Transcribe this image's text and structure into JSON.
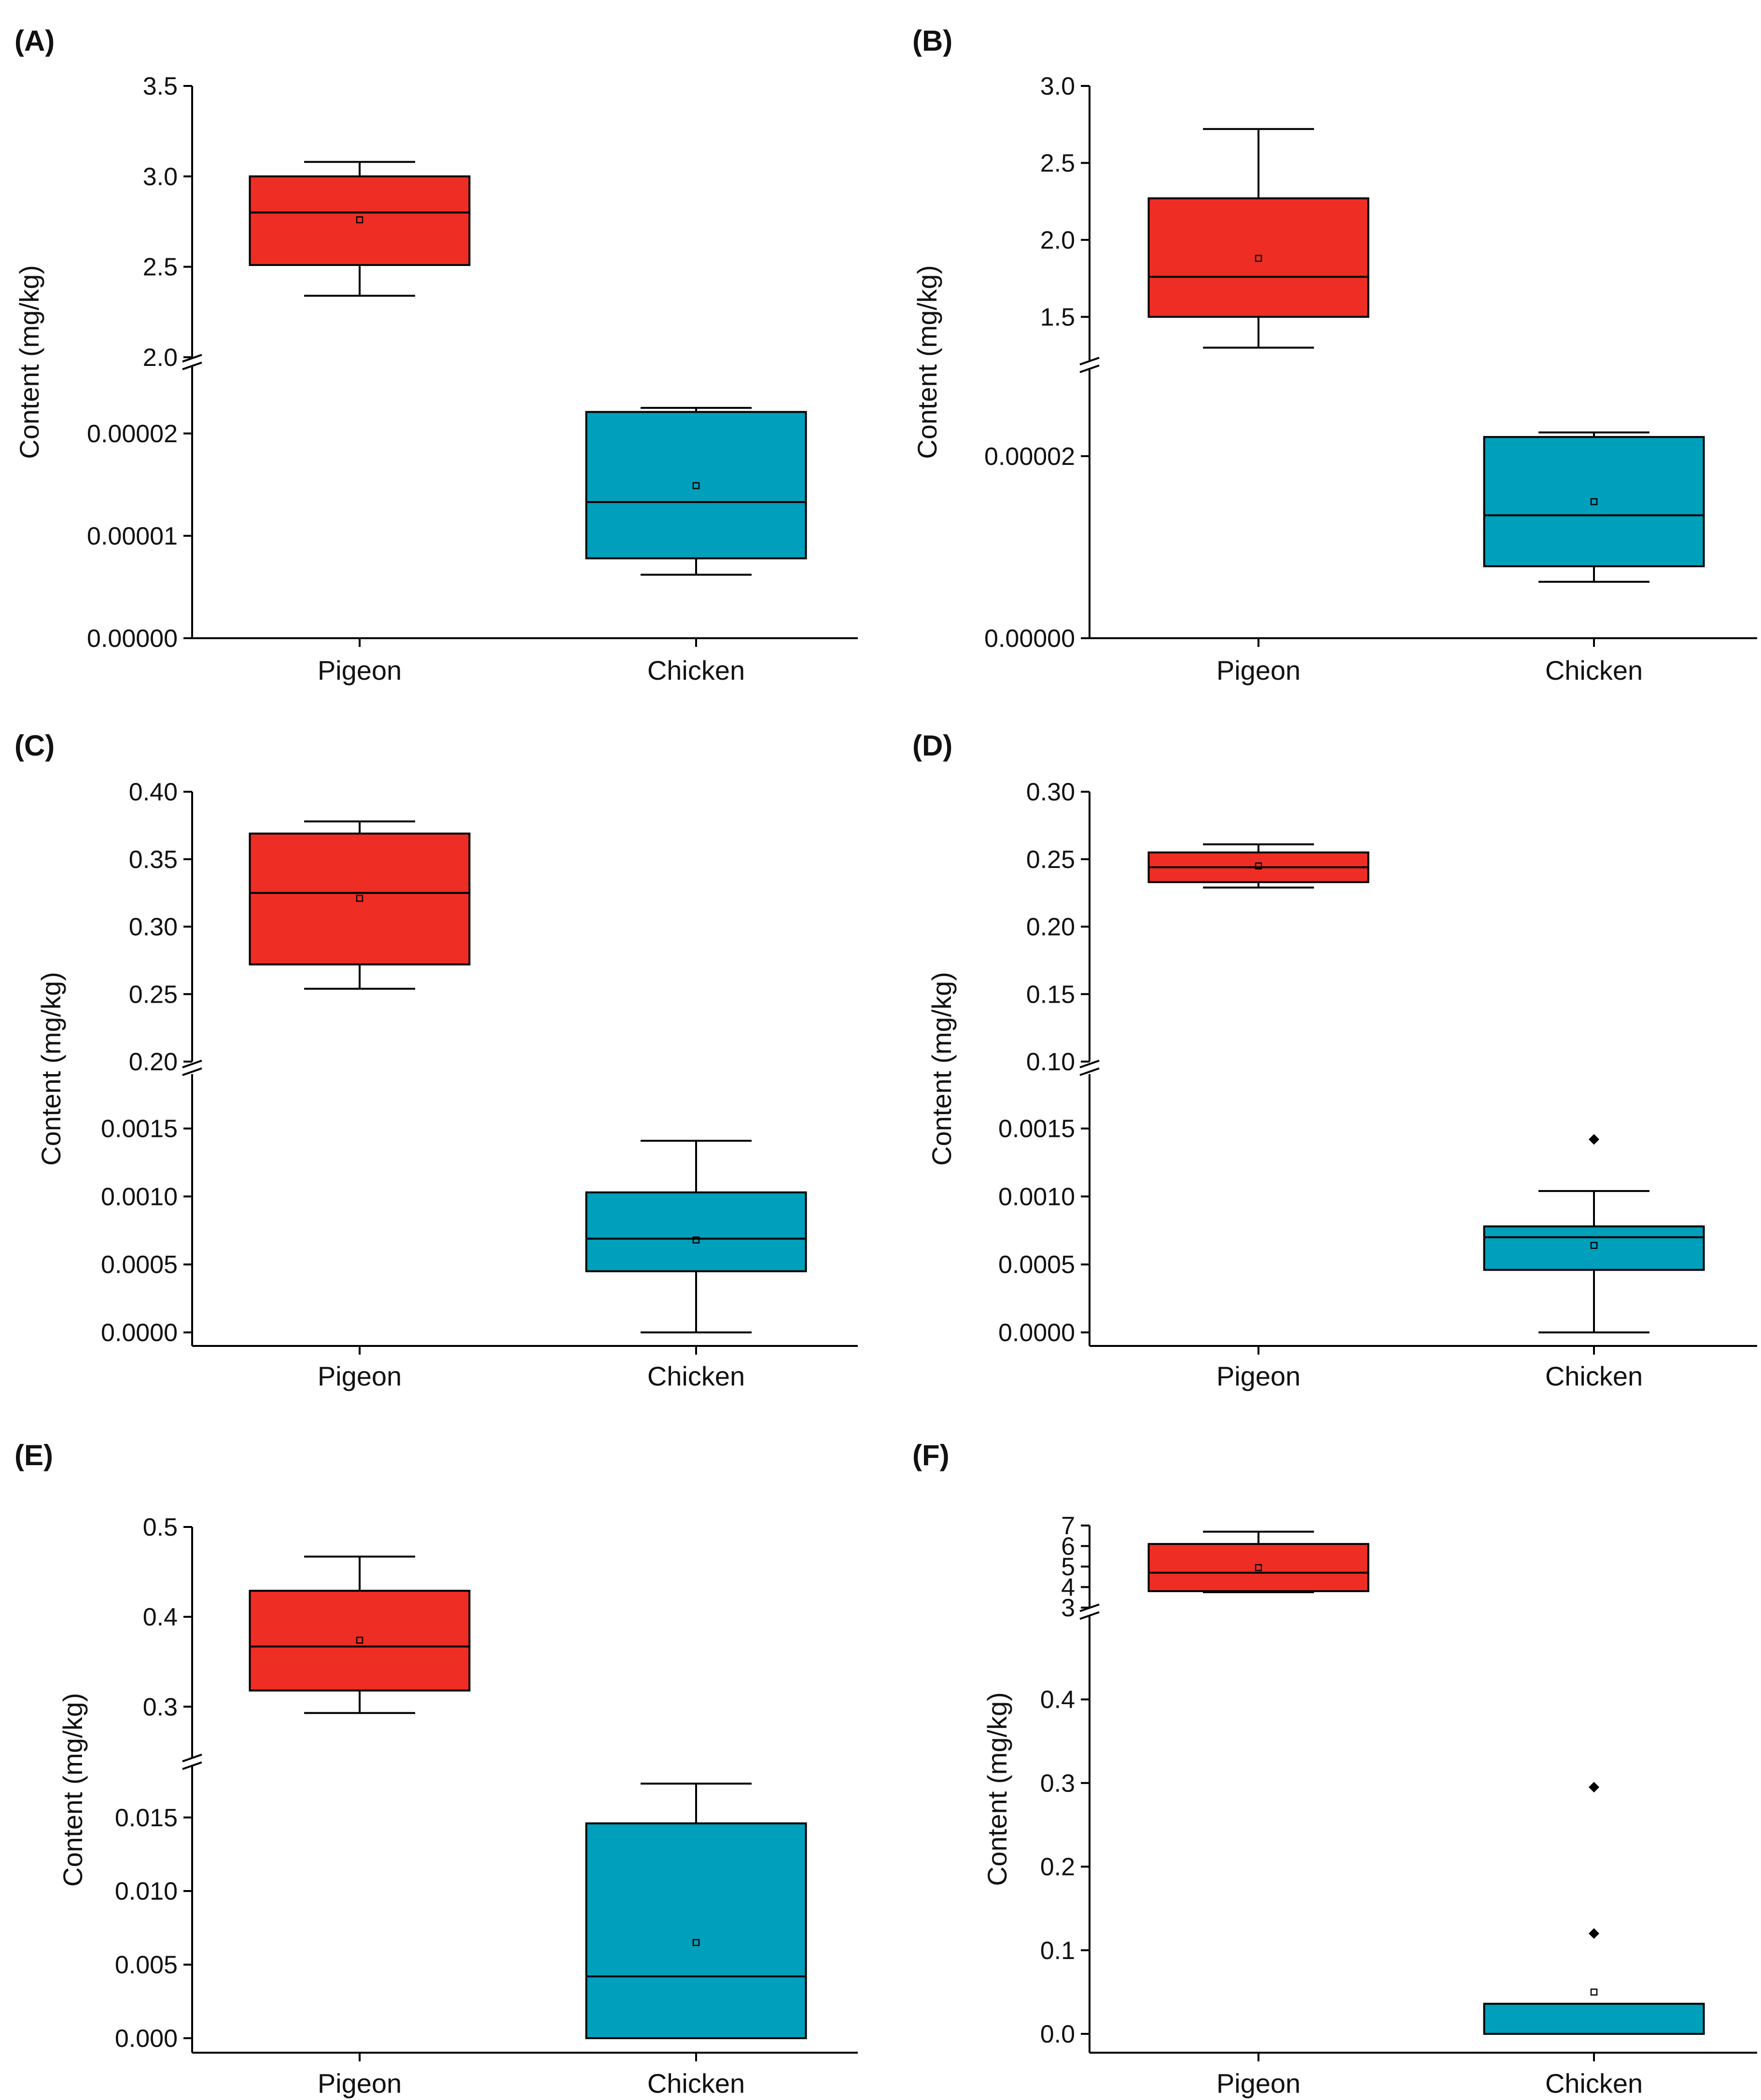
{
  "colors": {
    "pigeon": "#EE2E24",
    "chicken": "#009FBB"
  },
  "chart_data": [
    {
      "panel": "(A)",
      "type": "box",
      "ylabel": "Content (mg/kg)",
      "categories": [
        "Pigeon",
        "Chicken"
      ],
      "upper_range": [
        2.0,
        3.5
      ],
      "upper_ticks": [
        "2.0",
        "2.5",
        "3.0",
        "3.5"
      ],
      "lower_range": [
        0,
        2.65e-05
      ],
      "lower_ticks": [
        "0.00000",
        "0.00001",
        "0.00002"
      ],
      "boxes": [
        {
          "category": "Pigeon",
          "segment": "upper",
          "min": 2.34,
          "q1": 2.51,
          "median": 2.8,
          "q3": 3.0,
          "max": 3.08,
          "mean": 2.76,
          "outliers": []
        },
        {
          "category": "Chicken",
          "segment": "lower",
          "min": 6.2e-06,
          "q1": 7.8e-06,
          "median": 1.33e-05,
          "q3": 2.21e-05,
          "max": 2.25e-05,
          "mean": 1.49e-05,
          "outliers": []
        }
      ]
    },
    {
      "panel": "(B)",
      "type": "box",
      "ylabel": "Content (mg/kg)",
      "categories": [
        "Pigeon",
        "Chicken"
      ],
      "upper_range": [
        1.2,
        3.0
      ],
      "upper_ticks": [
        "1.5",
        "2.0",
        "2.5",
        "3.0"
      ],
      "lower_range": [
        0,
        2.98e-05
      ],
      "lower_ticks": [
        "0.00000",
        "0.00002"
      ],
      "boxes": [
        {
          "category": "Pigeon",
          "segment": "upper",
          "min": 1.3,
          "q1": 1.5,
          "median": 1.76,
          "q3": 2.27,
          "max": 2.72,
          "mean": 1.88,
          "outliers": []
        },
        {
          "category": "Chicken",
          "segment": "lower",
          "min": 6.2e-06,
          "q1": 7.9e-06,
          "median": 1.35e-05,
          "q3": 2.21e-05,
          "max": 2.26e-05,
          "mean": 1.5e-05,
          "outliers": []
        }
      ]
    },
    {
      "panel": "(C)",
      "type": "box",
      "ylabel": "Content (mg/kg)",
      "categories": [
        "Pigeon",
        "Chicken"
      ],
      "upper_range": [
        0.2,
        0.4
      ],
      "upper_ticks": [
        "0.20",
        "0.25",
        "0.30",
        "0.35",
        "0.40"
      ],
      "lower_range": [
        0,
        0.0019
      ],
      "lower_ticks": [
        "0.0000",
        "0.0005",
        "0.0010",
        "0.0015"
      ],
      "boxes": [
        {
          "category": "Pigeon",
          "segment": "upper",
          "min": 0.254,
          "q1": 0.272,
          "median": 0.325,
          "q3": 0.369,
          "max": 0.378,
          "mean": 0.321,
          "outliers": []
        },
        {
          "category": "Chicken",
          "segment": "lower",
          "min": 0.0,
          "q1": 0.00045,
          "median": 0.00069,
          "q3": 0.00103,
          "max": 0.00141,
          "mean": 0.00068,
          "outliers": []
        }
      ]
    },
    {
      "panel": "(D)",
      "type": "box",
      "ylabel": "Content (mg/kg)",
      "categories": [
        "Pigeon",
        "Chicken"
      ],
      "upper_range": [
        0.1,
        0.3
      ],
      "upper_ticks": [
        "0.10",
        "0.15",
        "0.20",
        "0.25",
        "0.30"
      ],
      "lower_range": [
        0,
        0.0019
      ],
      "lower_ticks": [
        "0.0000",
        "0.0005",
        "0.0010",
        "0.0015"
      ],
      "boxes": [
        {
          "category": "Pigeon",
          "segment": "upper",
          "min": 0.229,
          "q1": 0.233,
          "median": 0.244,
          "q3": 0.255,
          "max": 0.261,
          "mean": 0.245,
          "outliers": []
        },
        {
          "category": "Chicken",
          "segment": "lower",
          "min": 0.0,
          "q1": 0.00046,
          "median": 0.0007,
          "q3": 0.00078,
          "max": 0.00104,
          "mean": 0.00064,
          "outliers": [
            0.00142
          ]
        }
      ]
    },
    {
      "panel": "(E)",
      "type": "box",
      "ylabel": "Content (mg/kg)",
      "categories": [
        "Pigeon",
        "Chicken"
      ],
      "upper_range": [
        0.24,
        0.5
      ],
      "upper_ticks": [
        "0.3",
        "0.4",
        "0.5"
      ],
      "lower_range": [
        0,
        0.0187
      ],
      "lower_ticks": [
        "0.000",
        "0.005",
        "0.010",
        "0.015"
      ],
      "boxes": [
        {
          "category": "Pigeon",
          "segment": "upper",
          "min": 0.293,
          "q1": 0.318,
          "median": 0.367,
          "q3": 0.429,
          "max": 0.467,
          "mean": 0.374,
          "outliers": []
        },
        {
          "category": "Chicken",
          "segment": "lower",
          "min": 0.0,
          "q1": 0.0,
          "median": 0.0042,
          "q3": 0.0146,
          "max": 0.0173,
          "mean": 0.0065,
          "outliers": []
        }
      ]
    },
    {
      "panel": "(F)",
      "type": "box",
      "ylabel": "Content (mg/kg)",
      "categories": [
        "Pigeon",
        "Chicken"
      ],
      "upper_range": [
        3,
        7
      ],
      "upper_ticks": [
        "3",
        "4",
        "5",
        "6",
        "7"
      ],
      "lower_range": [
        0,
        0.5
      ],
      "lower_ticks": [
        "0.0",
        "0.1",
        "0.2",
        "0.3",
        "0.4"
      ],
      "boxes": [
        {
          "category": "Pigeon",
          "segment": "upper",
          "min": 3.75,
          "q1": 3.8,
          "median": 4.7,
          "q3": 6.1,
          "max": 6.7,
          "mean": 4.95,
          "outliers": []
        },
        {
          "category": "Chicken",
          "segment": "lower",
          "min": 0.0,
          "q1": 0.0,
          "median": 0.0,
          "q3": 0.036,
          "max": 0.036,
          "mean": 0.05,
          "outliers": [
            0.295,
            0.12
          ]
        }
      ]
    }
  ]
}
